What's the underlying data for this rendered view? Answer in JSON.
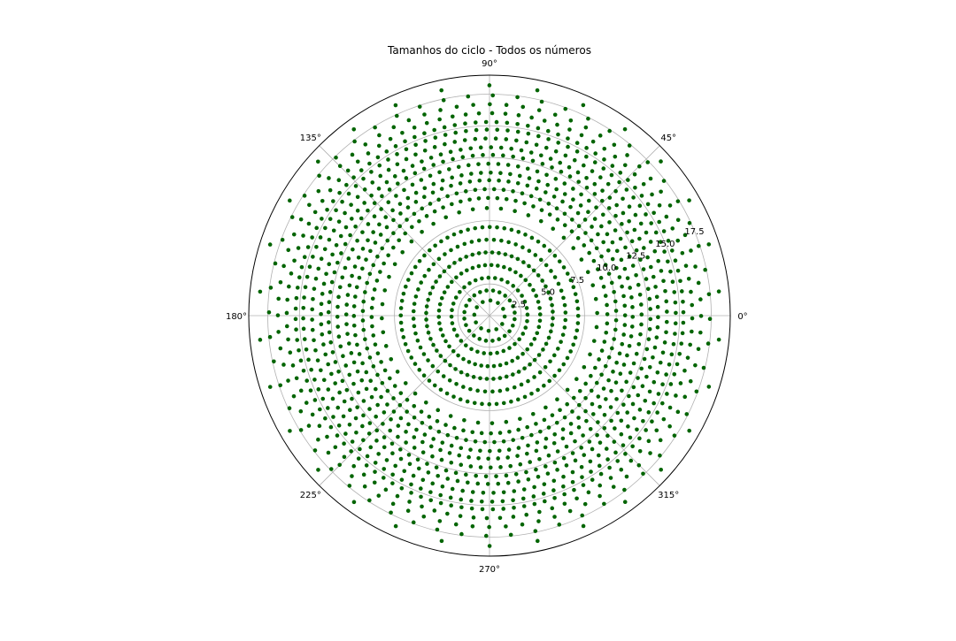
{
  "chart_data": {
    "type": "scatter",
    "projection": "polar",
    "title": "Tamanhos do ciclo - Todos os números",
    "theta_tick_labels": [
      "0°",
      "45°",
      "90°",
      "135°",
      "180°",
      "225°",
      "270°",
      "315°"
    ],
    "theta_tick_degrees": [
      0,
      45,
      90,
      135,
      180,
      225,
      270,
      315
    ],
    "r_tick_labels": [
      "2.5",
      "5.0",
      "7.5",
      "10.0",
      "12.5",
      "15.0",
      "17.5"
    ],
    "r_tick_values": [
      2.5,
      5.0,
      7.5,
      10.0,
      12.5,
      15.0,
      17.5
    ],
    "rlim": [
      0,
      19
    ],
    "r_label_angle_deg": 22.5,
    "grid": true,
    "marker_color": "#006400",
    "series": [
      {
        "rings": [
          {
            "r": 1.2,
            "count": 12
          },
          {
            "r": 2.0,
            "count": 24
          },
          {
            "r": 3.0,
            "count": 36
          },
          {
            "r": 4.0,
            "count": 50
          },
          {
            "r": 5.0,
            "count": 60
          },
          {
            "r": 6.0,
            "count": 64
          },
          {
            "r": 7.0,
            "count": 76
          },
          {
            "r": 8.5,
            "count": 48
          },
          {
            "r": 9.3,
            "count": 80
          },
          {
            "r": 10.0,
            "count": 84
          },
          {
            "r": 10.7,
            "count": 88
          },
          {
            "r": 11.3,
            "count": 92
          },
          {
            "r": 12.0,
            "count": 96
          },
          {
            "r": 12.7,
            "count": 100
          },
          {
            "r": 13.3,
            "count": 104
          },
          {
            "r": 14.0,
            "count": 108
          },
          {
            "r": 14.7,
            "count": 112
          },
          {
            "r": 15.3,
            "count": 116
          },
          {
            "r": 16.0,
            "count": 96
          },
          {
            "r": 16.7,
            "count": 80
          },
          {
            "r": 17.4,
            "count": 56
          },
          {
            "r": 18.2,
            "count": 30
          }
        ]
      }
    ]
  }
}
